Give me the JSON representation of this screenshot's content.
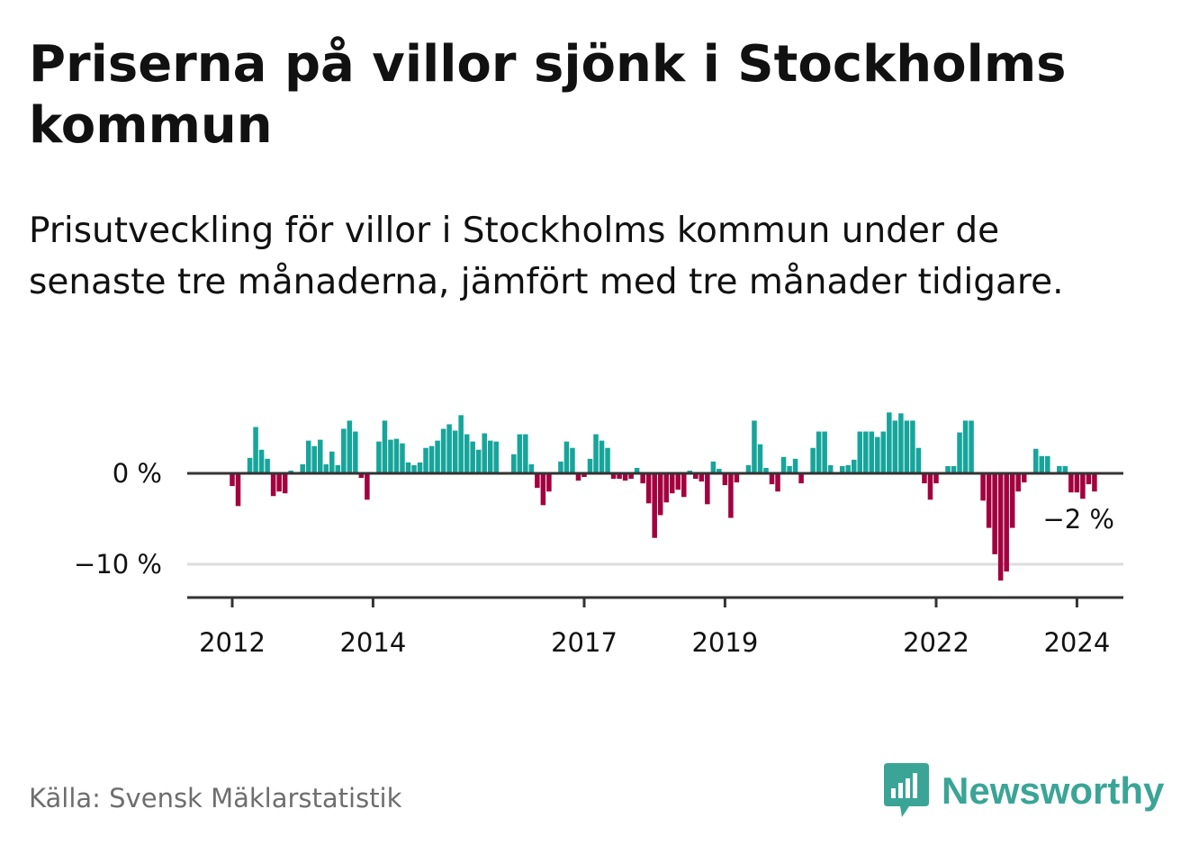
{
  "title": "Priserna på villor sjönk i Stockholms kommun",
  "subtitle": "Prisutveckling för villor i Stockholms kommun under de senaste tre månaderna, jämfört med tre månader tidigare.",
  "source": "Källa: Svensk Mäklarstatistik",
  "brand": {
    "name": "Newsworthy",
    "icon": "newsworthy-logo-icon"
  },
  "colors": {
    "positive": "#16a59b",
    "negative": "#a3003f",
    "axis": "#333333",
    "grid": "#dddddd",
    "text": "#111111",
    "muted": "#6e6e6e",
    "brand": "#3aa596"
  },
  "chart_data": {
    "type": "bar",
    "title": "Prisutveckling för villor i Stockholms kommun (3 mån mot föregående 3 mån)",
    "xlabel": "",
    "ylabel": "",
    "ylim": [
      -13,
      8
    ],
    "yticks": [
      0,
      -10
    ],
    "ytick_labels": [
      "0 %",
      "−10 %"
    ],
    "x_start": 2012.0,
    "x_step": 0.08333,
    "xticks": [
      2012,
      2014,
      2017,
      2019,
      2022,
      2024
    ],
    "xtick_labels": [
      "2012",
      "2014",
      "2017",
      "2019",
      "2022",
      "2024"
    ],
    "last_value_label": "−2 %",
    "values": [
      -1.4,
      -3.6,
      0,
      1.7,
      5.1,
      2.6,
      1.6,
      -2.5,
      -2.0,
      -2.2,
      0.3,
      0.0,
      1.0,
      3.6,
      3.0,
      3.7,
      1.0,
      2.4,
      0.9,
      4.9,
      5.8,
      4.6,
      -0.5,
      -2.9,
      0,
      3.5,
      5.8,
      3.7,
      3.8,
      3.3,
      1.2,
      0.9,
      1.2,
      2.8,
      3.0,
      3.6,
      4.9,
      5.4,
      4.7,
      6.4,
      4.3,
      3.5,
      2.6,
      4.4,
      3.6,
      3.5,
      0,
      0,
      2.1,
      4.3,
      4.3,
      1.0,
      -1.6,
      -3.5,
      -2.0,
      0,
      1.3,
      3.5,
      2.8,
      -0.8,
      -0.4,
      1.6,
      4.3,
      3.6,
      2.8,
      -0.6,
      -0.6,
      -0.8,
      -0.6,
      0.6,
      -1.1,
      -3.3,
      -7.1,
      -4.6,
      -3.2,
      -2.2,
      -1.8,
      -2.6,
      0.3,
      -0.6,
      -0.9,
      -3.4,
      1.3,
      0.5,
      -1.3,
      -4.9,
      -1.0,
      0,
      0.9,
      5.8,
      3.2,
      0.6,
      -1.2,
      -2.0,
      1.8,
      0.8,
      1.6,
      -1.1,
      0,
      2.8,
      4.6,
      4.6,
      0.9,
      0,
      0.8,
      0.9,
      1.5,
      4.6,
      4.6,
      4.6,
      4.0,
      4.6,
      6.7,
      5.8,
      6.6,
      5.8,
      5.8,
      2.8,
      -1.1,
      -2.9,
      -1.1,
      0,
      0.8,
      0.8,
      4.5,
      5.8,
      5.8,
      0,
      -3.0,
      -6.0,
      -8.9,
      -11.8,
      -10.8,
      -6.0,
      -2.0,
      -1.0,
      0,
      2.7,
      1.9,
      1.9,
      0,
      0.8,
      0.8,
      -2.1,
      -2.1,
      -2.8,
      -1.2,
      -2.0
    ]
  }
}
